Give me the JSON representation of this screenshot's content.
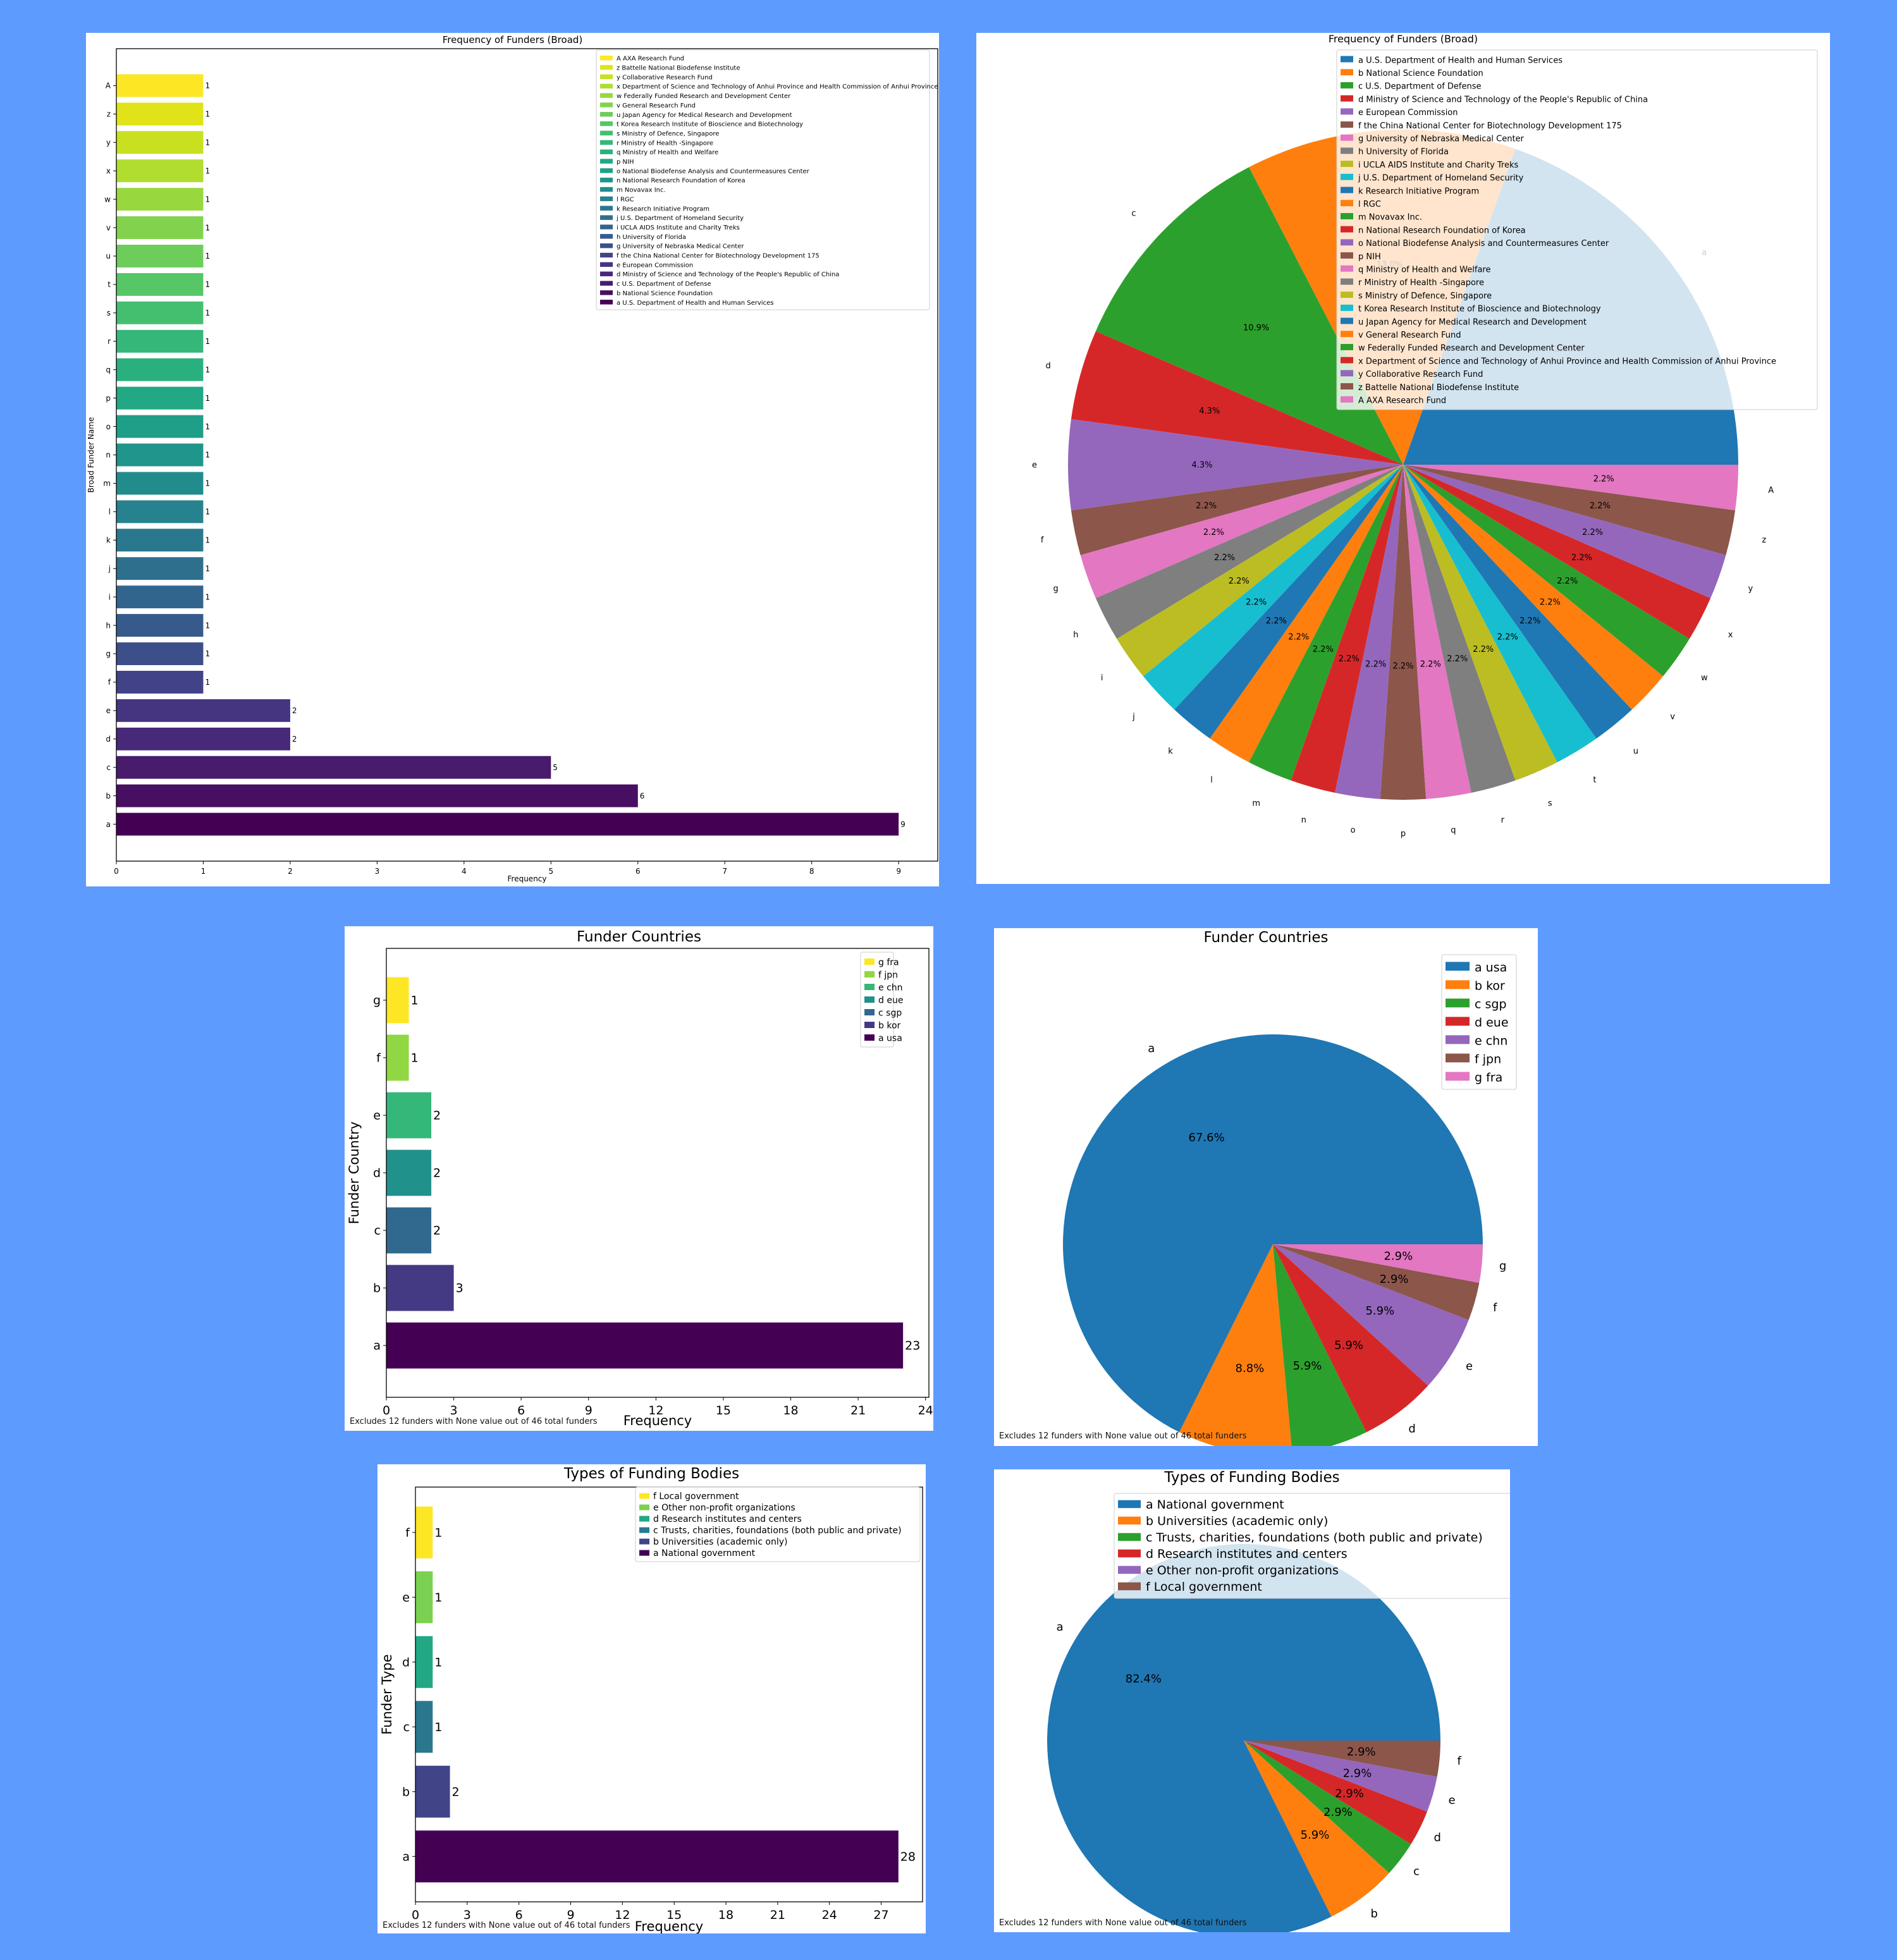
{
  "background": "#5e9bfe",
  "viridis_note": "bar charts use viridis colormap; pies use matplotlib tab10",
  "footnote": "Excludes 12 funders with None value out of 46 total funders",
  "chart_data": [
    {
      "id": "broad_bar",
      "type": "bar",
      "orientation": "horizontal",
      "title": "Frequency of Funders (Broad)",
      "xlabel": "Frequency",
      "ylabel": "Broad Funder Name",
      "xlim": [
        0,
        9.45
      ],
      "xticks": [
        0,
        1,
        2,
        3,
        4,
        5,
        6,
        7,
        8,
        9
      ],
      "categories": [
        "a",
        "b",
        "c",
        "d",
        "e",
        "f",
        "g",
        "h",
        "i",
        "j",
        "k",
        "l",
        "m",
        "n",
        "o",
        "p",
        "q",
        "r",
        "s",
        "t",
        "u",
        "v",
        "w",
        "x",
        "y",
        "z",
        "A"
      ],
      "values": [
        9,
        6,
        5,
        2,
        2,
        1,
        1,
        1,
        1,
        1,
        1,
        1,
        1,
        1,
        1,
        1,
        1,
        1,
        1,
        1,
        1,
        1,
        1,
        1,
        1,
        1,
        1
      ],
      "colors": [
        "#440154",
        "#470e61",
        "#481b6d",
        "#482878",
        "#453581",
        "#414287",
        "#3c4f8a",
        "#375a8c",
        "#32658e",
        "#2e6f8e",
        "#2a788e",
        "#26828e",
        "#228c8d",
        "#1f958b",
        "#1f9f88",
        "#22a884",
        "#2ab07f",
        "#35b779",
        "#44bf70",
        "#56c667",
        "#6ccd5a",
        "#81d34d",
        "#98d83e",
        "#b0dd2f",
        "#c8e020",
        "#dfe318",
        "#fde725"
      ],
      "legend_order": "reversed",
      "legend": [
        "A AXA Research Fund",
        "z Battelle National Biodefense Institute",
        "y Collaborative Research Fund",
        "x Department of Science and Technology of Anhui Province and Health Commission of Anhui Province",
        "w Federally Funded Research and Development Center",
        "v General Research Fund",
        "u Japan Agency for Medical Research and Development",
        "t Korea Research Institute of Bioscience and Biotechnology",
        "s Ministry of Defence, Singapore",
        "r Ministry of Health -Singapore",
        "q Ministry of Health and Welfare",
        "p NIH",
        "o National Biodefense Analysis and Countermeasures Center",
        "n National Research Foundation of Korea",
        "m Novavax Inc.",
        "l RGC",
        "k Research Initiative Program",
        "j U.S. Department of Homeland Security",
        "i UCLA AIDS Institute and Charity Treks",
        "h University of Florida",
        "g University of Nebraska Medical Center",
        "f the China National Center for Biotechnology Development 175",
        "e European Commission",
        "d Ministry of Science and Technology of the People's Republic of China",
        "c U.S. Department of Defense",
        "b National Science Foundation",
        "a U.S. Department of Health and Human Services"
      ],
      "grid": false
    },
    {
      "id": "broad_pie",
      "type": "pie",
      "title": "Frequency of Funders (Broad)",
      "categories": [
        "a",
        "b",
        "c",
        "d",
        "e",
        "f",
        "g",
        "h",
        "i",
        "j",
        "k",
        "l",
        "m",
        "n",
        "o",
        "p",
        "q",
        "r",
        "s",
        "t",
        "u",
        "v",
        "w",
        "x",
        "y",
        "z",
        "A"
      ],
      "values": [
        9,
        6,
        5,
        2,
        2,
        1,
        1,
        1,
        1,
        1,
        1,
        1,
        1,
        1,
        1,
        1,
        1,
        1,
        1,
        1,
        1,
        1,
        1,
        1,
        1,
        1,
        1
      ],
      "pct_labels": [
        "19.6%",
        "13.0%",
        "10.9%",
        "4.3%",
        "4.3%",
        "2.2%",
        "2.2%",
        "2.2%",
        "2.2%",
        "2.2%",
        "2.2%",
        "2.2%",
        "2.2%",
        "2.2%",
        "2.2%",
        "2.2%",
        "2.2%",
        "2.2%",
        "2.2%",
        "2.2%",
        "2.2%",
        "2.2%",
        "2.2%",
        "2.2%",
        "2.2%",
        "2.2%",
        "2.2%"
      ],
      "legend": [
        "a U.S. Department of Health and Human Services",
        "b National Science Foundation",
        "c U.S. Department of Defense",
        "d Ministry of Science and Technology of the People's Republic of China",
        "e European Commission",
        "f the China National Center for Biotechnology Development 175",
        "g University of Nebraska Medical Center",
        "h University of Florida",
        "i UCLA AIDS Institute and Charity Treks",
        "j U.S. Department of Homeland Security",
        "k Research Initiative Program",
        "l RGC",
        "m Novavax Inc.",
        "n National Research Foundation of Korea",
        "o National Biodefense Analysis and Countermeasures Center",
        "p NIH",
        "q Ministry of Health and Welfare",
        "r Ministry of Health -Singapore",
        "s Ministry of Defence, Singapore",
        "t Korea Research Institute of Bioscience and Biotechnology",
        "u Japan Agency for Medical Research and Development",
        "v General Research Fund",
        "w Federally Funded Research and Development Center",
        "x Department of Science and Technology of Anhui Province and Health Commission of Anhui Province",
        "y Collaborative Research Fund",
        "z Battelle National Biodefense Institute",
        "A AXA Research Fund"
      ],
      "legend_position": "upper right"
    },
    {
      "id": "country_bar",
      "type": "bar",
      "orientation": "horizontal",
      "title": "Funder Countries",
      "xlabel": "Frequency",
      "ylabel": "Funder Country",
      "xlim": [
        0,
        24.15
      ],
      "xticks": [
        0,
        3,
        6,
        9,
        12,
        15,
        18,
        21,
        24
      ],
      "categories": [
        "a",
        "b",
        "c",
        "d",
        "e",
        "f",
        "g"
      ],
      "values": [
        23,
        3,
        2,
        2,
        2,
        1,
        1
      ],
      "colors": [
        "#440154",
        "#443983",
        "#31688e",
        "#21918c",
        "#35b779",
        "#90d743",
        "#fde725"
      ],
      "legend": [
        "g fra",
        "f jpn",
        "e chn",
        "d eue",
        "c sgp",
        "b kor",
        "a usa"
      ],
      "legend_position": "upper right",
      "footnote": "Excludes 12 funders with None value out of 46 total funders"
    },
    {
      "id": "country_pie",
      "type": "pie",
      "title": "Funder Countries",
      "categories": [
        "a",
        "b",
        "c",
        "d",
        "e",
        "f",
        "g"
      ],
      "values": [
        23,
        3,
        2,
        2,
        2,
        1,
        1
      ],
      "pct_labels": [
        "67.6%",
        "8.8%",
        "5.9%",
        "5.9%",
        "5.9%",
        "2.9%",
        "2.9%"
      ],
      "legend": [
        "a usa",
        "b kor",
        "c sgp",
        "d eue",
        "e chn",
        "f jpn",
        "g fra"
      ],
      "legend_position": "upper right",
      "footnote": "Excludes 12 funders with None value out of 46 total funders"
    },
    {
      "id": "type_bar",
      "type": "bar",
      "orientation": "horizontal",
      "title": "Types of Funding Bodies",
      "xlabel": "Frequency",
      "ylabel": "Funder Type",
      "xlim": [
        0,
        29.4
      ],
      "xticks": [
        0,
        3,
        6,
        9,
        12,
        15,
        18,
        21,
        24,
        27
      ],
      "categories": [
        "a",
        "b",
        "c",
        "d",
        "e",
        "f"
      ],
      "values": [
        28,
        2,
        1,
        1,
        1,
        1
      ],
      "colors": [
        "#440154",
        "#414487",
        "#2a788e",
        "#22a884",
        "#7ad151",
        "#fde725"
      ],
      "legend": [
        "f Local government",
        "e Other non-profit organizations",
        "d Research institutes and centers",
        "c Trusts, charities, foundations (both public and private)",
        "b Universities (academic only)",
        "a National government"
      ],
      "legend_position": "upper right",
      "footnote": "Excludes 12 funders with None value out of 46 total funders"
    },
    {
      "id": "type_pie",
      "type": "pie",
      "title": "Types of Funding Bodies",
      "categories": [
        "a",
        "b",
        "c",
        "d",
        "e",
        "f"
      ],
      "values": [
        28,
        2,
        1,
        1,
        1,
        1
      ],
      "pct_labels": [
        "82.4%",
        "5.9%",
        "2.9%",
        "2.9%",
        "2.9%",
        "2.9%"
      ],
      "legend": [
        "a National government",
        "b Universities (academic only)",
        "c Trusts, charities, foundations (both public and private)",
        "d Research institutes and centers",
        "e Other non-profit organizations",
        "f Local government"
      ],
      "legend_position": "upper center",
      "footnote": "Excludes 12 funders with None value out of 46 total funders"
    }
  ],
  "tab10": [
    "#1f77b4",
    "#ff7f0e",
    "#2ca02c",
    "#d62728",
    "#9467bd",
    "#8c564b",
    "#e377c2",
    "#7f7f7f",
    "#bcbd22",
    "#17becf"
  ]
}
